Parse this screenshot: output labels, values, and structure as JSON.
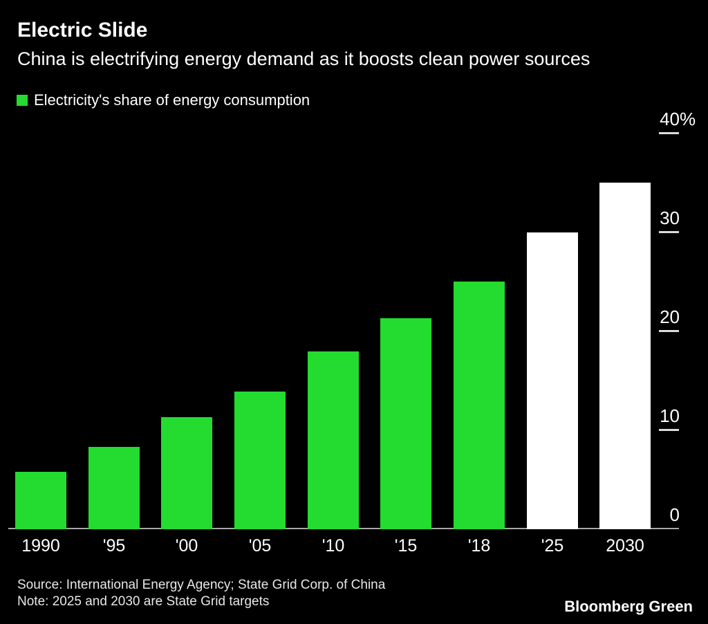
{
  "header": {
    "title": "Electric Slide",
    "subtitle": "China is electrifying energy demand as it boosts clean power sources"
  },
  "legend": {
    "label": "Electricity's share of energy consumption",
    "swatch_color": "#24db30"
  },
  "footer": {
    "source": "Source: International Energy Agency; State Grid Corp. of China",
    "note": "Note: 2025 and 2030 are State Grid targets",
    "brand": "Bloomberg Green"
  },
  "chart_data": {
    "type": "bar",
    "title": "Electric Slide",
    "subtitle": "China is electrifying energy demand as it boosts clean power sources",
    "series_label": "Electricity's share of energy consumption",
    "categories": [
      "1990",
      "'95",
      "'00",
      "'05",
      "'10",
      "'15",
      "'18",
      "'25",
      "2030"
    ],
    "values": [
      5.8,
      8.3,
      11.3,
      13.9,
      18,
      21.3,
      25,
      30,
      35
    ],
    "roles": [
      "historical",
      "historical",
      "historical",
      "historical",
      "historical",
      "historical",
      "historical",
      "target",
      "target"
    ],
    "colors": {
      "historical": "#24db30",
      "target": "#ffffff"
    },
    "y_ticks": [
      {
        "label": "40",
        "suffix": "%",
        "value": 40
      },
      {
        "label": "30",
        "suffix": "",
        "value": 30
      },
      {
        "label": "20",
        "suffix": "",
        "value": 20
      },
      {
        "label": "10",
        "suffix": "",
        "value": 10
      },
      {
        "label": "0",
        "suffix": "",
        "value": 0
      }
    ],
    "ylim": [
      0,
      40
    ],
    "ylabel": "",
    "xlabel": "",
    "axis_side": "right",
    "grid": false,
    "background": "#000000",
    "note": "2025 and 2030 bars are State Grid targets (white); historical bars are green"
  }
}
